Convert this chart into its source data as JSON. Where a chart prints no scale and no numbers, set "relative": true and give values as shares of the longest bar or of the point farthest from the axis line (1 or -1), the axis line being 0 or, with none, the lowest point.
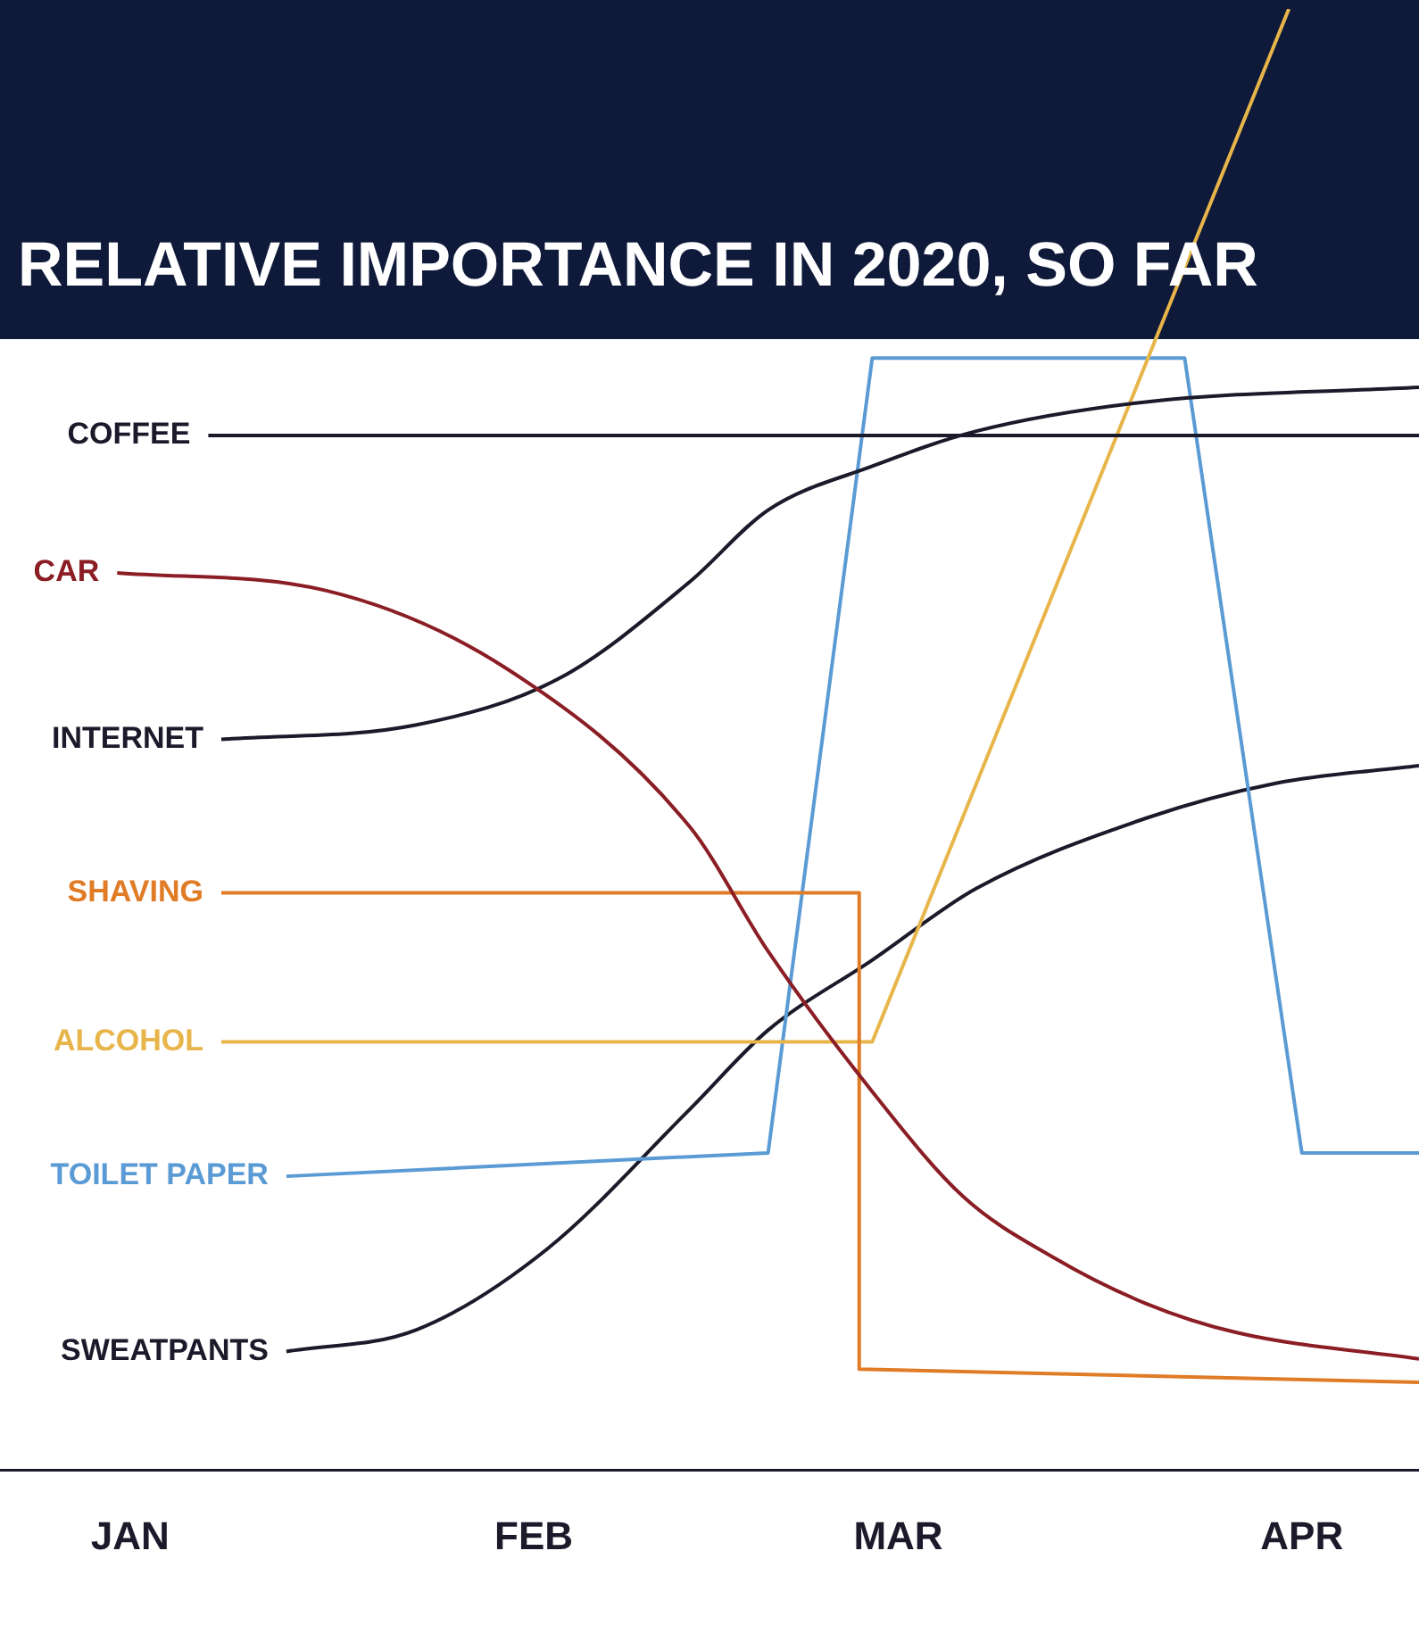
{
  "chart_data": {
    "type": "line",
    "title": "RELATIVE IMPORTANCE IN 2020, SO FAR",
    "relative": true,
    "legend": false,
    "grid": false,
    "marker": "none",
    "line_style": "solid",
    "xlim": [
      "--01-05",
      "--04-24"
    ],
    "xticks": [
      {
        "value": "--01-15",
        "label": "JAN"
      },
      {
        "value": "--02-15",
        "label": "FEB"
      },
      {
        "value": "--03-15",
        "label": "MAR"
      },
      {
        "value": "--04-15",
        "label": "APR"
      }
    ],
    "series": [
      {
        "name": "COFFEE",
        "color": "#1a1a2a",
        "x": [
          "--01-21",
          "--04-24"
        ],
        "values": [
          0.708,
          0.708
        ]
      },
      {
        "name": "CAR",
        "color": "#8b1e24",
        "x": [
          "--01-14",
          "--01-30",
          "--02-13",
          "--02-27",
          "--03-05",
          "--03-13",
          "--03-20",
          "--03-27",
          "--04-03",
          "--04-10",
          "--04-24"
        ],
        "values": [
          0.614,
          0.602,
          0.548,
          0.44,
          0.355,
          0.259,
          0.187,
          0.145,
          0.114,
          0.094,
          0.076
        ]
      },
      {
        "name": "INTERNET",
        "color": "#1a1a2a",
        "x": [
          "--01-22",
          "--02-06",
          "--02-17",
          "--02-27",
          "--03-05",
          "--03-13",
          "--03-21",
          "--04-03",
          "--04-24"
        ],
        "values": [
          0.5,
          0.51,
          0.542,
          0.608,
          0.657,
          0.687,
          0.711,
          0.731,
          0.741
        ]
      },
      {
        "name": "SHAVING",
        "color": "#e07b26",
        "x": [
          "--01-22",
          "--03-12",
          "--03-12",
          "--04-24"
        ],
        "values": [
          0.395,
          0.395,
          0.069,
          0.06
        ]
      },
      {
        "name": "ALCOHOL",
        "color": "#e8b54a",
        "x": [
          "--01-22",
          "--03-13",
          "--04-14"
        ],
        "values": [
          0.293,
          0.293,
          1
        ]
      },
      {
        "name": "TOILET PAPER",
        "color": "#5b9bd5",
        "x": [
          "--01-27",
          "--03-05",
          "--03-13",
          "--04-06",
          "--04-15",
          "--04-24"
        ],
        "values": [
          0.201,
          0.217,
          0.761,
          0.761,
          0.217,
          0.217
        ]
      },
      {
        "name": "SWEATPANTS",
        "color": "#1a1a2a",
        "x": [
          "--01-27",
          "--02-06",
          "--02-16",
          "--02-27",
          "--03-05",
          "--03-13",
          "--03-21",
          "--04-03",
          "--04-13",
          "--04-24"
        ],
        "values": [
          0.081,
          0.096,
          0.151,
          0.247,
          0.301,
          0.349,
          0.398,
          0.446,
          0.47,
          0.482
        ]
      }
    ]
  }
}
